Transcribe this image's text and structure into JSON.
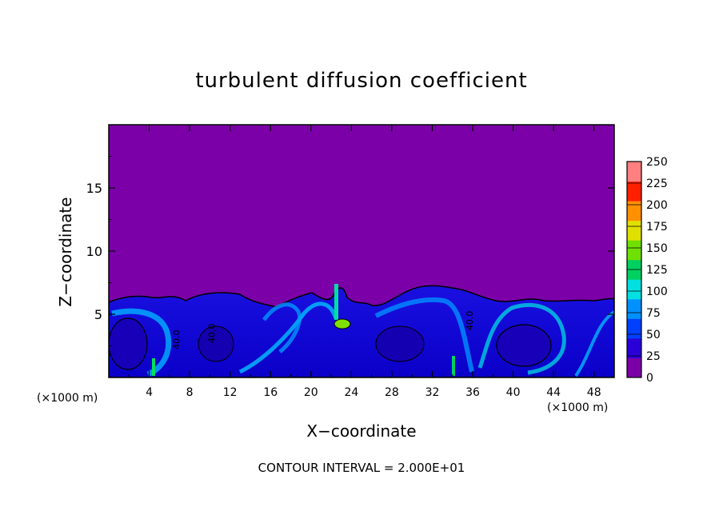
{
  "chart_data": {
    "type": "heatmap",
    "title": "turbulent diffusion coefficient",
    "xlabel": "X−coordinate",
    "ylabel": "Z−coordinate",
    "x_unit_left": "(×1000 m)",
    "x_unit_right": "(×1000 m)",
    "footnote": "CONTOUR INTERVAL = 2.000E+01",
    "xlim": [
      0,
      50
    ],
    "ylim": [
      0,
      20
    ],
    "x_ticks": [
      4,
      8,
      12,
      16,
      20,
      24,
      28,
      32,
      36,
      40,
      44,
      48
    ],
    "y_ticks": [
      5,
      10,
      15
    ],
    "colorbar": {
      "min": 0,
      "max": 250,
      "ticks": [
        0,
        25,
        50,
        75,
        100,
        125,
        150,
        175,
        200,
        225,
        250
      ],
      "colors": [
        "#7b00a8",
        "#2a00d8",
        "#0040ff",
        "#0090ff",
        "#00e0e0",
        "#00d060",
        "#70e000",
        "#e0e000",
        "#ff9000",
        "#ff2000",
        "#ff8080"
      ]
    },
    "background_value": 0,
    "background_color": "#7b00a8",
    "turbulent_layer_top_approx": 6.5,
    "contour_labels": [
      {
        "x": 7,
        "z": 3,
        "text": "40.0"
      },
      {
        "x": 10.5,
        "z": 3.5,
        "text": "40.0"
      },
      {
        "x": 36,
        "z": 4.5,
        "text": "40.0"
      }
    ]
  }
}
